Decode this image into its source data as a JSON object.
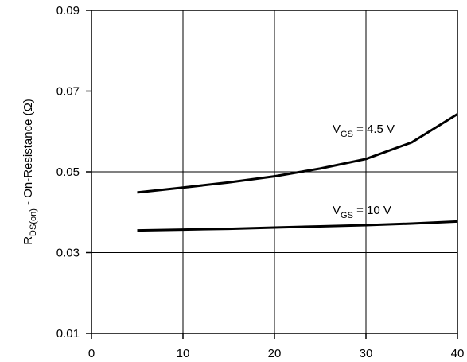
{
  "chart_data": {
    "type": "line",
    "ylabel": {
      "main": "R",
      "sub": "DS(on)",
      "rest": " - On-Resistance (Ω)"
    },
    "xlabel": "",
    "xlim": [
      0,
      40
    ],
    "ylim": [
      0.01,
      0.09
    ],
    "xticks": [
      "0",
      "10",
      "20",
      "30",
      "40"
    ],
    "yticks": [
      "0.01",
      "0.03",
      "0.05",
      "0.07",
      "0.09"
    ],
    "grid": true,
    "series": [
      {
        "name": "VGS = 4.5 V",
        "label": {
          "main": "V",
          "sub": "GS",
          "rest": " = 4.5 V"
        },
        "color": "#000000",
        "x": [
          5,
          10,
          15,
          20,
          25,
          30,
          35,
          40
        ],
        "y": [
          0.0449,
          0.0461,
          0.0474,
          0.0489,
          0.0508,
          0.0532,
          0.0573,
          0.0643
        ]
      },
      {
        "name": "VGS = 10 V",
        "label": {
          "main": "V",
          "sub": "GS",
          "rest": " = 10 V"
        },
        "color": "#000000",
        "x": [
          5,
          10,
          15,
          20,
          25,
          30,
          35,
          40
        ],
        "y": [
          0.0355,
          0.0357,
          0.0359,
          0.0362,
          0.0365,
          0.0368,
          0.0372,
          0.0377
        ]
      }
    ]
  }
}
